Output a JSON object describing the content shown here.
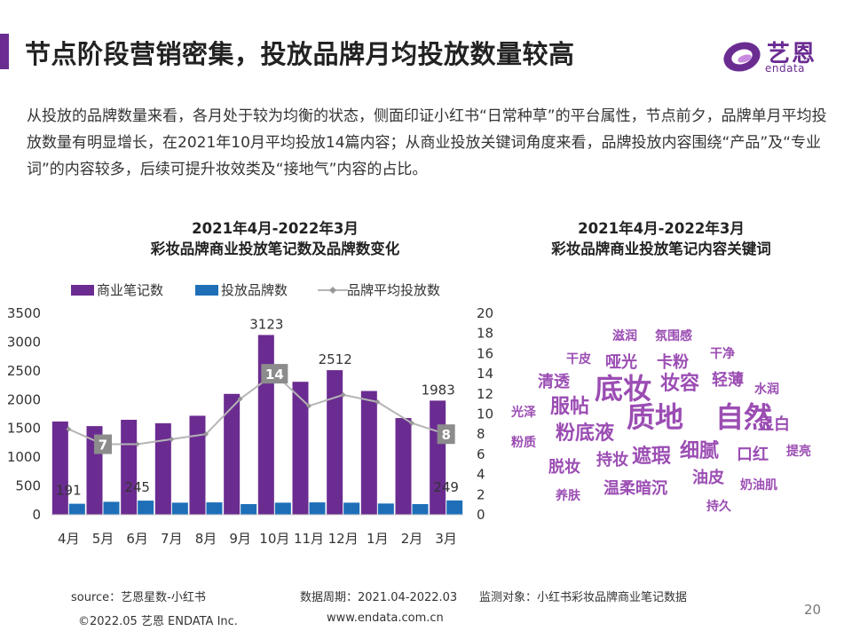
{
  "colors": {
    "accent": "#6b2c91",
    "bar_notes": "#6b2c91",
    "bar_brands": "#1e6fb8",
    "line": "#b5b5b5",
    "label_box": "#8c8c8c",
    "wordcloud": "#9b4db3"
  },
  "header": {
    "title": "节点阶段营销密集，投放品牌月均投放数量较高",
    "logo_text": "艺恩",
    "logo_sub": "endata"
  },
  "intro": "从投放的品牌数量来看，各月处于较为均衡的状态，侧面印证小红书“日常种草”的平台属性，节点前夕，品牌单月平均投放数量有明显增长，在2021年10月平均投放14篇内容；从商业投放关键词角度来看，品牌投放内容围绕“产品”及“专业词”的内容较多，后续可提升妆效类及“接地气”内容的占比。",
  "left_chart": {
    "title_line1": "2021年4月-2022年3月",
    "title_line2": "彩妆品牌商业投放笔记数及品牌数变化"
  },
  "right_chart": {
    "title_line1": "2021年4月-2022年3月",
    "title_line2": "彩妆品牌商业投放笔记内容关键词"
  },
  "chart_data": [
    {
      "type": "bar",
      "categories": [
        "4月",
        "5月",
        "6月",
        "7月",
        "8月",
        "9月",
        "10月",
        "11月",
        "12月",
        "1月",
        "2月",
        "3月"
      ],
      "series": [
        {
          "name": "商业笔记数",
          "type": "bar",
          "axis": "left",
          "values": [
            1620,
            1540,
            1650,
            1590,
            1720,
            2100,
            3123,
            2310,
            2512,
            2150,
            1680,
            1983
          ]
        },
        {
          "name": "投放品牌数",
          "type": "bar",
          "axis": "left",
          "values": [
            191,
            225,
            245,
            210,
            215,
            185,
            210,
            215,
            210,
            195,
            185,
            249
          ]
        },
        {
          "name": "品牌平均投放数",
          "type": "line",
          "axis": "right",
          "values": [
            8.5,
            7,
            7,
            7.5,
            8,
            11.5,
            14,
            10.8,
            11.9,
            11.2,
            9.1,
            8
          ]
        }
      ],
      "data_labels": [
        {
          "series": 0,
          "index": 6,
          "text": "3123"
        },
        {
          "series": 0,
          "index": 8,
          "text": "2512"
        },
        {
          "series": 0,
          "index": 11,
          "text": "1983"
        },
        {
          "series": 1,
          "index": 0,
          "text": "191"
        },
        {
          "series": 1,
          "index": 2,
          "text": "245"
        },
        {
          "series": 1,
          "index": 11,
          "text": "249"
        },
        {
          "series": 2,
          "index": 1,
          "text": "7"
        },
        {
          "series": 2,
          "index": 6,
          "text": "14"
        },
        {
          "series": 2,
          "index": 11,
          "text": "8"
        }
      ],
      "ylim": [
        0,
        3500
      ],
      "yticks": [
        0,
        500,
        1000,
        1500,
        2000,
        2500,
        3000,
        3500
      ],
      "y2lim": [
        0,
        20
      ],
      "y2ticks": [
        0,
        2,
        4,
        6,
        8,
        10,
        12,
        14,
        16,
        18,
        20
      ],
      "legend": "top",
      "grid": false
    },
    {
      "type": "wordcloud",
      "words": [
        {
          "text": "滋润",
          "weight": 2
        },
        {
          "text": "氛围感",
          "weight": 2
        },
        {
          "text": "干皮",
          "weight": 2
        },
        {
          "text": "哑光",
          "weight": 3
        },
        {
          "text": "卡粉",
          "weight": 3
        },
        {
          "text": "干净",
          "weight": 2
        },
        {
          "text": "清透",
          "weight": 3
        },
        {
          "text": "底妆",
          "weight": 5
        },
        {
          "text": "妆容",
          "weight": 4
        },
        {
          "text": "轻薄",
          "weight": 3
        },
        {
          "text": "水润",
          "weight": 2
        },
        {
          "text": "光泽",
          "weight": 2
        },
        {
          "text": "服帖",
          "weight": 4
        },
        {
          "text": "质地",
          "weight": 5
        },
        {
          "text": "自然",
          "weight": 5
        },
        {
          "text": "显白",
          "weight": 3
        },
        {
          "text": "粉质",
          "weight": 2
        },
        {
          "text": "粉底液",
          "weight": 4
        },
        {
          "text": "细腻",
          "weight": 4
        },
        {
          "text": "提亮",
          "weight": 2
        },
        {
          "text": "口红",
          "weight": 3
        },
        {
          "text": "脱妆",
          "weight": 3
        },
        {
          "text": "持妆",
          "weight": 3
        },
        {
          "text": "遮瑕",
          "weight": 4
        },
        {
          "text": "油皮",
          "weight": 3
        },
        {
          "text": "奶油肌",
          "weight": 2
        },
        {
          "text": "养肤",
          "weight": 2
        },
        {
          "text": "温柔暗沉",
          "weight": 3
        },
        {
          "text": "持久",
          "weight": 2
        }
      ]
    }
  ],
  "footer": {
    "source": "source：艺恩星数-小红书",
    "period": "数据周期：2021.04-2022.03",
    "target": "监测对象：小红书彩妆品牌商业笔记数据",
    "copyright": "©2022.05 艺恩 ENDATA Inc.",
    "website": "www.endata.com.cn",
    "page": "20"
  }
}
